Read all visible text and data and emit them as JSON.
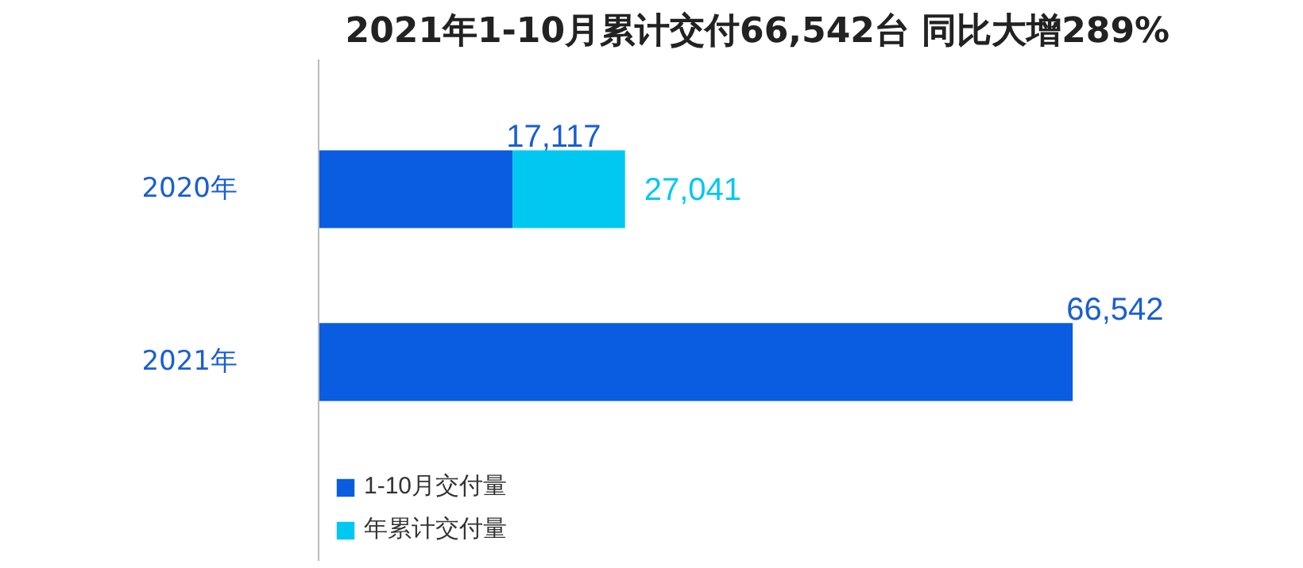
{
  "chart_data": {
    "type": "bar",
    "orientation": "horizontal",
    "title": "2021年1-10月累计交付66,542台  同比大增289%",
    "categories": [
      "2020年",
      "2021年"
    ],
    "stacked": true,
    "totals": [
      "27,041",
      null
    ],
    "series": [
      {
        "name": "1-10月交付量",
        "color": "#0a5ce0",
        "values": [
          17117,
          66542
        ],
        "value_labels": [
          "17,117",
          "66,542"
        ]
      },
      {
        "name": "年累计交付量",
        "color": "#00c8f0",
        "values": [
          9924,
          null
        ]
      }
    ],
    "tick_labels": "y",
    "legend": "bottom left",
    "grid": false
  }
}
